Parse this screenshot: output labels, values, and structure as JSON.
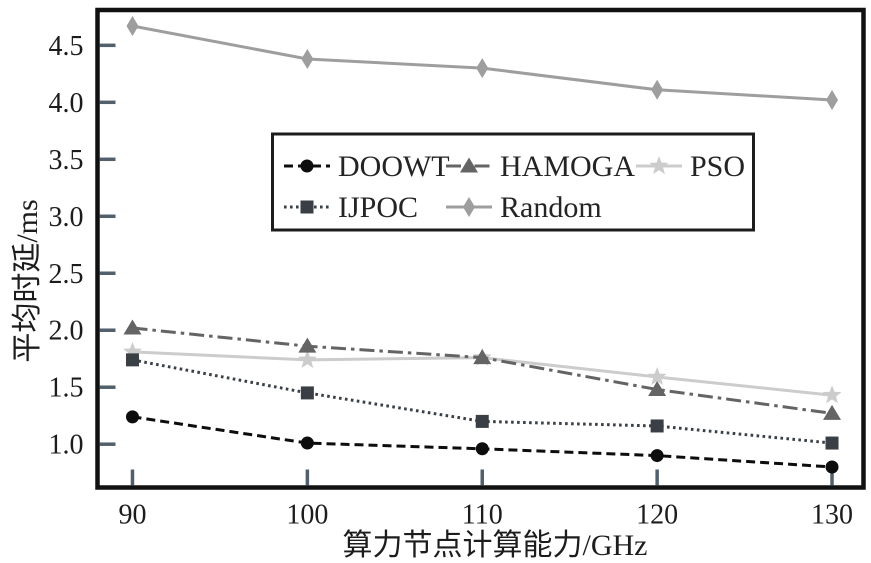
{
  "chart_data": {
    "type": "line",
    "title": "",
    "xlabel": "算力节点计算能力/GHz",
    "ylabel": "平均时延/ms",
    "x": [
      90,
      100,
      110,
      120,
      130
    ],
    "xtick_labels": [
      "90",
      "100",
      "110",
      "120",
      "130"
    ],
    "yticks": [
      1.0,
      1.5,
      2.0,
      2.5,
      3.0,
      3.5,
      4.0,
      4.5
    ],
    "ytick_labels": [
      "1.0",
      "1.5",
      "2.0",
      "2.5",
      "3.0",
      "3.5",
      "4.0",
      "4.5"
    ],
    "xlim": [
      88.0,
      131.8
    ],
    "ylim": [
      0.62,
      4.81
    ],
    "grid": false,
    "legend_position": "upper-center-inside",
    "legend_order": [
      "DOOWT",
      "HAMOGA",
      "PSO",
      "IJPOC",
      "Random"
    ],
    "series": [
      {
        "name": "DOOWT",
        "values": [
          1.24,
          1.01,
          0.96,
          0.9,
          0.8
        ],
        "color": "#0d0d0d",
        "line_style": "dashed",
        "marker": "circle",
        "zorder": 5
      },
      {
        "name": "IJPOC",
        "values": [
          1.74,
          1.45,
          1.2,
          1.16,
          1.01
        ],
        "color": "#3a3f45",
        "line_style": "dotted",
        "marker": "square",
        "zorder": 4
      },
      {
        "name": "HAMOGA",
        "values": [
          2.02,
          1.86,
          1.76,
          1.48,
          1.27
        ],
        "color": "#646464",
        "line_style": "dashdot",
        "marker": "triangle",
        "zorder": 3
      },
      {
        "name": "PSO",
        "values": [
          1.81,
          1.74,
          1.76,
          1.59,
          1.43
        ],
        "color": "#cccccc",
        "line_style": "solid",
        "marker": "star",
        "zorder": 1
      },
      {
        "name": "Random",
        "values": [
          4.67,
          4.38,
          4.3,
          4.11,
          4.02
        ],
        "color": "#9e9e9e",
        "line_style": "solid",
        "marker": "diamond",
        "zorder": 2
      }
    ],
    "axis_color": "#111111",
    "tick_color": "#52606b",
    "text_color": "#1c1c1c",
    "background_color": "#ffffff"
  }
}
